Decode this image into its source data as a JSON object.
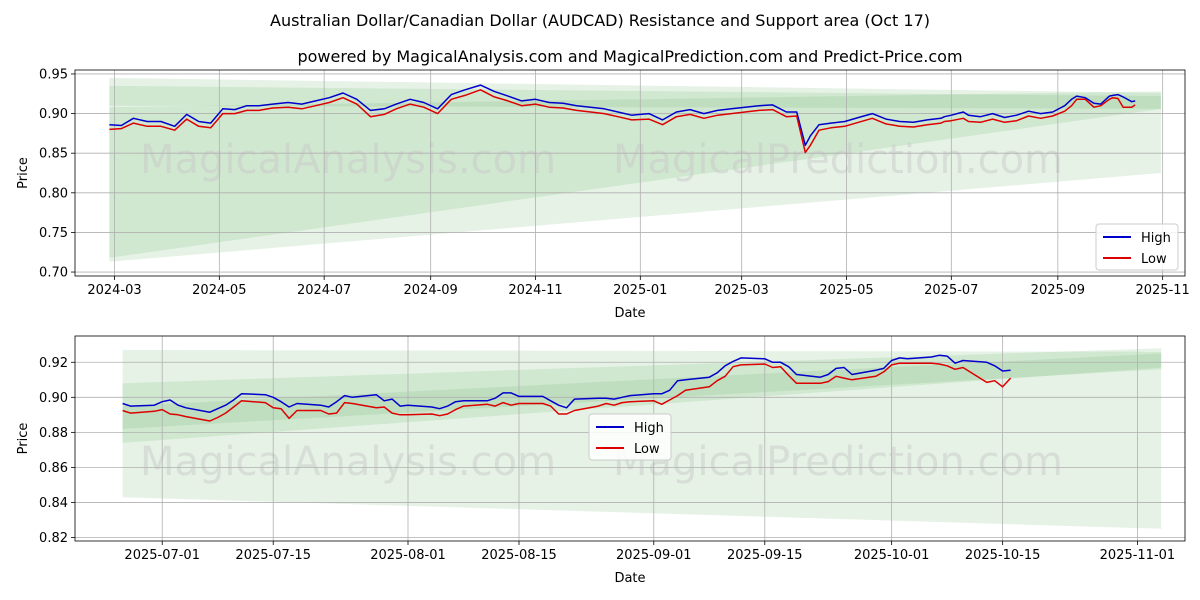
{
  "title": "Australian Dollar/Canadian Dollar (AUDCAD) Resistance and Support area (Oct 17)",
  "subtitle": "powered by MagicalAnalysis.com and MagicalPrediction.com and Predict-Price.com",
  "watermarks": [
    "MagicalAnalysis.com",
    "MagicalPrediction.com"
  ],
  "colors": {
    "high": "#0000cc",
    "low": "#dd0000",
    "band": "#7fbf7f",
    "grid": "#b0b0b0"
  },
  "chart_data": [
    {
      "type": "line",
      "xlabel": "Date",
      "ylabel": "Price",
      "xlim": [
        "2024-02-07",
        "2025-11-14"
      ],
      "ylim": [
        0.695,
        0.955
      ],
      "yticks": [
        0.7,
        0.75,
        0.8,
        0.85,
        0.9,
        0.95
      ],
      "ytick_labels": [
        "0.70",
        "0.75",
        "0.80",
        "0.85",
        "0.90",
        "0.95"
      ],
      "xticks": [
        "2024-03-01",
        "2024-05-01",
        "2024-07-01",
        "2024-09-01",
        "2024-11-01",
        "2025-01-01",
        "2025-03-01",
        "2025-05-01",
        "2025-07-01",
        "2025-09-01",
        "2025-11-01"
      ],
      "xtick_labels": [
        "2024-03",
        "2024-05",
        "2024-07",
        "2024-09",
        "2024-11",
        "2025-01",
        "2025-03",
        "2025-05",
        "2025-07",
        "2025-09",
        "2025-11"
      ],
      "legend": {
        "position": "lower-right",
        "entries": [
          "High",
          "Low"
        ]
      },
      "bands": [
        {
          "x": [
            "2024-02-27",
            "2025-10-31"
          ],
          "upper": [
            0.945,
            0.926
          ],
          "lower": [
            0.91,
            0.906
          ]
        },
        {
          "x": [
            "2024-02-27",
            "2025-10-31"
          ],
          "upper": [
            0.935,
            0.922
          ],
          "lower": [
            0.718,
            0.906
          ]
        },
        {
          "x": [
            "2024-02-27",
            "2025-10-31"
          ],
          "upper": [
            0.908,
            0.928
          ],
          "lower": [
            0.713,
            0.825
          ]
        }
      ],
      "series": [
        {
          "name": "High",
          "x": [
            "2024-02-27",
            "2024-03-05",
            "2024-03-12",
            "2024-03-20",
            "2024-03-28",
            "2024-04-05",
            "2024-04-12",
            "2024-04-19",
            "2024-04-26",
            "2024-05-03",
            "2024-05-10",
            "2024-05-17",
            "2024-05-24",
            "2024-06-01",
            "2024-06-10",
            "2024-06-18",
            "2024-06-26",
            "2024-07-04",
            "2024-07-12",
            "2024-07-20",
            "2024-07-28",
            "2024-08-05",
            "2024-08-12",
            "2024-08-20",
            "2024-08-28",
            "2024-09-05",
            "2024-09-13",
            "2024-09-21",
            "2024-09-30",
            "2024-10-08",
            "2024-10-16",
            "2024-10-24",
            "2024-11-01",
            "2024-11-09",
            "2024-11-17",
            "2024-11-25",
            "2024-12-03",
            "2024-12-11",
            "2024-12-19",
            "2024-12-27",
            "2025-01-06",
            "2025-01-14",
            "2025-01-22",
            "2025-01-30",
            "2025-02-07",
            "2025-02-15",
            "2025-02-23",
            "2025-03-03",
            "2025-03-11",
            "2025-03-19",
            "2025-03-27",
            "2025-04-02",
            "2025-04-07",
            "2025-04-10",
            "2025-04-15",
            "2025-04-22",
            "2025-04-30",
            "2025-05-08",
            "2025-05-16",
            "2025-05-24",
            "2025-06-01",
            "2025-06-09",
            "2025-06-17",
            "2025-06-25",
            "2025-06-27",
            "2025-07-01",
            "2025-07-08",
            "2025-07-11",
            "2025-07-18",
            "2025-07-25",
            "2025-08-01",
            "2025-08-08",
            "2025-08-15",
            "2025-08-22",
            "2025-08-29",
            "2025-09-05",
            "2025-09-09",
            "2025-09-12",
            "2025-09-17",
            "2025-09-22",
            "2025-09-26",
            "2025-10-01",
            "2025-10-03",
            "2025-10-06",
            "2025-10-09",
            "2025-10-14",
            "2025-10-16"
          ],
          "values": [
            0.886,
            0.885,
            0.894,
            0.89,
            0.89,
            0.884,
            0.899,
            0.89,
            0.888,
            0.906,
            0.905,
            0.91,
            0.91,
            0.912,
            0.914,
            0.912,
            0.916,
            0.92,
            0.926,
            0.918,
            0.904,
            0.906,
            0.912,
            0.918,
            0.914,
            0.906,
            0.924,
            0.93,
            0.936,
            0.928,
            0.922,
            0.916,
            0.918,
            0.914,
            0.913,
            0.91,
            0.908,
            0.906,
            0.902,
            0.898,
            0.9,
            0.892,
            0.902,
            0.905,
            0.9,
            0.904,
            0.906,
            0.908,
            0.91,
            0.911,
            0.902,
            0.902,
            0.86,
            0.872,
            0.886,
            0.888,
            0.89,
            0.895,
            0.9,
            0.893,
            0.89,
            0.889,
            0.892,
            0.894,
            0.896,
            0.898,
            0.902,
            0.898,
            0.896,
            0.9,
            0.895,
            0.898,
            0.903,
            0.9,
            0.902,
            0.91,
            0.918,
            0.922,
            0.92,
            0.913,
            0.912,
            0.922,
            0.923,
            0.924,
            0.921,
            0.915,
            0.916
          ]
        },
        {
          "name": "Low",
          "x": [
            "2024-02-27",
            "2024-03-05",
            "2024-03-12",
            "2024-03-20",
            "2024-03-28",
            "2024-04-05",
            "2024-04-12",
            "2024-04-19",
            "2024-04-26",
            "2024-05-03",
            "2024-05-10",
            "2024-05-17",
            "2024-05-24",
            "2024-06-01",
            "2024-06-10",
            "2024-06-18",
            "2024-06-26",
            "2024-07-04",
            "2024-07-12",
            "2024-07-20",
            "2024-07-28",
            "2024-08-05",
            "2024-08-12",
            "2024-08-20",
            "2024-08-28",
            "2024-09-05",
            "2024-09-13",
            "2024-09-21",
            "2024-09-30",
            "2024-10-08",
            "2024-10-16",
            "2024-10-24",
            "2024-11-01",
            "2024-11-09",
            "2024-11-17",
            "2024-11-25",
            "2024-12-03",
            "2024-12-11",
            "2024-12-19",
            "2024-12-27",
            "2025-01-06",
            "2025-01-14",
            "2025-01-22",
            "2025-01-30",
            "2025-02-07",
            "2025-02-15",
            "2025-02-23",
            "2025-03-03",
            "2025-03-11",
            "2025-03-19",
            "2025-03-27",
            "2025-04-02",
            "2025-04-07",
            "2025-04-10",
            "2025-04-15",
            "2025-04-22",
            "2025-04-30",
            "2025-05-08",
            "2025-05-16",
            "2025-05-24",
            "2025-06-01",
            "2025-06-09",
            "2025-06-17",
            "2025-06-25",
            "2025-06-27",
            "2025-07-01",
            "2025-07-08",
            "2025-07-11",
            "2025-07-18",
            "2025-07-25",
            "2025-08-01",
            "2025-08-08",
            "2025-08-15",
            "2025-08-22",
            "2025-08-29",
            "2025-09-05",
            "2025-09-09",
            "2025-09-12",
            "2025-09-17",
            "2025-09-22",
            "2025-09-26",
            "2025-10-01",
            "2025-10-03",
            "2025-10-06",
            "2025-10-09",
            "2025-10-14",
            "2025-10-16"
          ],
          "values": [
            0.88,
            0.881,
            0.888,
            0.884,
            0.884,
            0.879,
            0.893,
            0.884,
            0.882,
            0.9,
            0.9,
            0.904,
            0.904,
            0.907,
            0.908,
            0.906,
            0.91,
            0.914,
            0.92,
            0.912,
            0.896,
            0.899,
            0.906,
            0.912,
            0.908,
            0.9,
            0.918,
            0.923,
            0.93,
            0.921,
            0.916,
            0.91,
            0.912,
            0.908,
            0.907,
            0.904,
            0.902,
            0.9,
            0.896,
            0.892,
            0.893,
            0.886,
            0.896,
            0.899,
            0.894,
            0.898,
            0.9,
            0.902,
            0.904,
            0.905,
            0.896,
            0.897,
            0.851,
            0.86,
            0.879,
            0.882,
            0.884,
            0.889,
            0.894,
            0.887,
            0.884,
            0.883,
            0.886,
            0.888,
            0.89,
            0.891,
            0.894,
            0.89,
            0.889,
            0.893,
            0.889,
            0.891,
            0.897,
            0.894,
            0.897,
            0.903,
            0.91,
            0.918,
            0.918,
            0.908,
            0.91,
            0.918,
            0.92,
            0.919,
            0.908,
            0.908,
            0.911
          ]
        }
      ]
    },
    {
      "type": "line",
      "xlabel": "Date",
      "ylabel": "Price",
      "xlim": [
        "2025-06-20",
        "2025-11-07"
      ],
      "ylim": [
        0.818,
        0.935
      ],
      "yticks": [
        0.82,
        0.84,
        0.86,
        0.88,
        0.9,
        0.92
      ],
      "ytick_labels": [
        "0.82",
        "0.84",
        "0.86",
        "0.88",
        "0.90",
        "0.92"
      ],
      "xticks": [
        "2025-07-01",
        "2025-07-15",
        "2025-08-01",
        "2025-08-15",
        "2025-09-01",
        "2025-09-15",
        "2025-10-01",
        "2025-10-15",
        "2025-11-01"
      ],
      "xtick_labels": [
        "2025-07-01",
        "2025-07-15",
        "2025-08-01",
        "2025-08-15",
        "2025-09-01",
        "2025-09-15",
        "2025-10-01",
        "2025-10-15",
        "2025-11-01"
      ],
      "legend": {
        "position": "center",
        "entries": [
          "High",
          "Low"
        ]
      },
      "bands": [
        {
          "x": [
            "2025-06-26",
            "2025-11-04"
          ],
          "upper": [
            0.927,
            0.926
          ],
          "lower": [
            0.882,
            0.916
          ]
        },
        {
          "x": [
            "2025-06-26",
            "2025-11-04"
          ],
          "upper": [
            0.908,
            0.928
          ],
          "lower": [
            0.874,
            0.917
          ]
        },
        {
          "x": [
            "2025-06-26",
            "2025-11-04"
          ],
          "upper": [
            0.895,
            0.925
          ],
          "lower": [
            0.843,
            0.825
          ]
        }
      ],
      "series": [
        {
          "name": "High",
          "x": [
            "2025-06-26",
            "2025-06-27",
            "2025-06-30",
            "2025-07-01",
            "2025-07-02",
            "2025-07-03",
            "2025-07-04",
            "2025-07-07",
            "2025-07-08",
            "2025-07-09",
            "2025-07-10",
            "2025-07-11",
            "2025-07-14",
            "2025-07-15",
            "2025-07-16",
            "2025-07-17",
            "2025-07-18",
            "2025-07-21",
            "2025-07-22",
            "2025-07-23",
            "2025-07-24",
            "2025-07-25",
            "2025-07-28",
            "2025-07-29",
            "2025-07-30",
            "2025-07-31",
            "2025-08-01",
            "2025-08-04",
            "2025-08-05",
            "2025-08-06",
            "2025-08-07",
            "2025-08-08",
            "2025-08-11",
            "2025-08-12",
            "2025-08-13",
            "2025-08-14",
            "2025-08-15",
            "2025-08-18",
            "2025-08-19",
            "2025-08-20",
            "2025-08-21",
            "2025-08-22",
            "2025-08-25",
            "2025-08-26",
            "2025-08-27",
            "2025-08-28",
            "2025-08-29",
            "2025-09-01",
            "2025-09-02",
            "2025-09-03",
            "2025-09-04",
            "2025-09-05",
            "2025-09-08",
            "2025-09-09",
            "2025-09-10",
            "2025-09-11",
            "2025-09-12",
            "2025-09-15",
            "2025-09-16",
            "2025-09-17",
            "2025-09-18",
            "2025-09-19",
            "2025-09-22",
            "2025-09-23",
            "2025-09-24",
            "2025-09-25",
            "2025-09-26",
            "2025-09-29",
            "2025-09-30",
            "2025-10-01",
            "2025-10-02",
            "2025-10-03",
            "2025-10-06",
            "2025-10-07",
            "2025-10-08",
            "2025-10-09",
            "2025-10-10",
            "2025-10-13",
            "2025-10-14",
            "2025-10-15",
            "2025-10-16"
          ],
          "values": [
            0.8965,
            0.895,
            0.8955,
            0.8975,
            0.8985,
            0.8955,
            0.894,
            0.8915,
            0.8935,
            0.8955,
            0.8985,
            0.902,
            0.9015,
            0.9,
            0.8975,
            0.8945,
            0.8965,
            0.8955,
            0.8945,
            0.8975,
            0.901,
            0.9,
            0.9015,
            0.898,
            0.899,
            0.895,
            0.8955,
            0.8945,
            0.8935,
            0.895,
            0.8975,
            0.898,
            0.898,
            0.8995,
            0.9025,
            0.9025,
            0.9005,
            0.9005,
            0.898,
            0.8955,
            0.894,
            0.899,
            0.8995,
            0.8995,
            0.899,
            0.9,
            0.901,
            0.902,
            0.902,
            0.904,
            0.9095,
            0.91,
            0.9115,
            0.914,
            0.918,
            0.9205,
            0.9225,
            0.922,
            0.92,
            0.92,
            0.9175,
            0.913,
            0.9115,
            0.913,
            0.9165,
            0.917,
            0.913,
            0.9155,
            0.9165,
            0.921,
            0.9225,
            0.922,
            0.923,
            0.924,
            0.9235,
            0.9195,
            0.921,
            0.92,
            0.918,
            0.915,
            0.9155
          ]
        },
        {
          "name": "Low",
          "x": [
            "2025-06-26",
            "2025-06-27",
            "2025-06-30",
            "2025-07-01",
            "2025-07-02",
            "2025-07-03",
            "2025-07-04",
            "2025-07-07",
            "2025-07-08",
            "2025-07-09",
            "2025-07-10",
            "2025-07-11",
            "2025-07-14",
            "2025-07-15",
            "2025-07-16",
            "2025-07-17",
            "2025-07-18",
            "2025-07-21",
            "2025-07-22",
            "2025-07-23",
            "2025-07-24",
            "2025-07-25",
            "2025-07-28",
            "2025-07-29",
            "2025-07-30",
            "2025-07-31",
            "2025-08-01",
            "2025-08-04",
            "2025-08-05",
            "2025-08-06",
            "2025-08-07",
            "2025-08-08",
            "2025-08-11",
            "2025-08-12",
            "2025-08-13",
            "2025-08-14",
            "2025-08-15",
            "2025-08-18",
            "2025-08-19",
            "2025-08-20",
            "2025-08-21",
            "2025-08-22",
            "2025-08-25",
            "2025-08-26",
            "2025-08-27",
            "2025-08-28",
            "2025-08-29",
            "2025-09-01",
            "2025-09-02",
            "2025-09-03",
            "2025-09-04",
            "2025-09-05",
            "2025-09-08",
            "2025-09-09",
            "2025-09-10",
            "2025-09-11",
            "2025-09-12",
            "2025-09-15",
            "2025-09-16",
            "2025-09-17",
            "2025-09-18",
            "2025-09-19",
            "2025-09-22",
            "2025-09-23",
            "2025-09-24",
            "2025-09-25",
            "2025-09-26",
            "2025-09-29",
            "2025-09-30",
            "2025-10-01",
            "2025-10-02",
            "2025-10-03",
            "2025-10-06",
            "2025-10-07",
            "2025-10-08",
            "2025-10-09",
            "2025-10-10",
            "2025-10-13",
            "2025-10-14",
            "2025-10-15",
            "2025-10-16"
          ],
          "values": [
            0.8925,
            0.891,
            0.892,
            0.893,
            0.8905,
            0.89,
            0.889,
            0.8865,
            0.8885,
            0.891,
            0.8945,
            0.898,
            0.897,
            0.894,
            0.8935,
            0.888,
            0.8925,
            0.8925,
            0.8905,
            0.891,
            0.897,
            0.8965,
            0.894,
            0.8945,
            0.891,
            0.89,
            0.89,
            0.8905,
            0.8895,
            0.8905,
            0.893,
            0.895,
            0.896,
            0.895,
            0.897,
            0.8955,
            0.8965,
            0.8965,
            0.895,
            0.8905,
            0.8905,
            0.8925,
            0.895,
            0.8965,
            0.8955,
            0.897,
            0.8975,
            0.898,
            0.896,
            0.8985,
            0.901,
            0.904,
            0.906,
            0.9095,
            0.912,
            0.9175,
            0.9185,
            0.919,
            0.917,
            0.9175,
            0.9125,
            0.908,
            0.908,
            0.909,
            0.912,
            0.911,
            0.91,
            0.912,
            0.9145,
            0.9185,
            0.9195,
            0.9195,
            0.9195,
            0.919,
            0.918,
            0.916,
            0.917,
            0.9085,
            0.9095,
            0.906,
            0.911
          ]
        }
      ]
    }
  ]
}
